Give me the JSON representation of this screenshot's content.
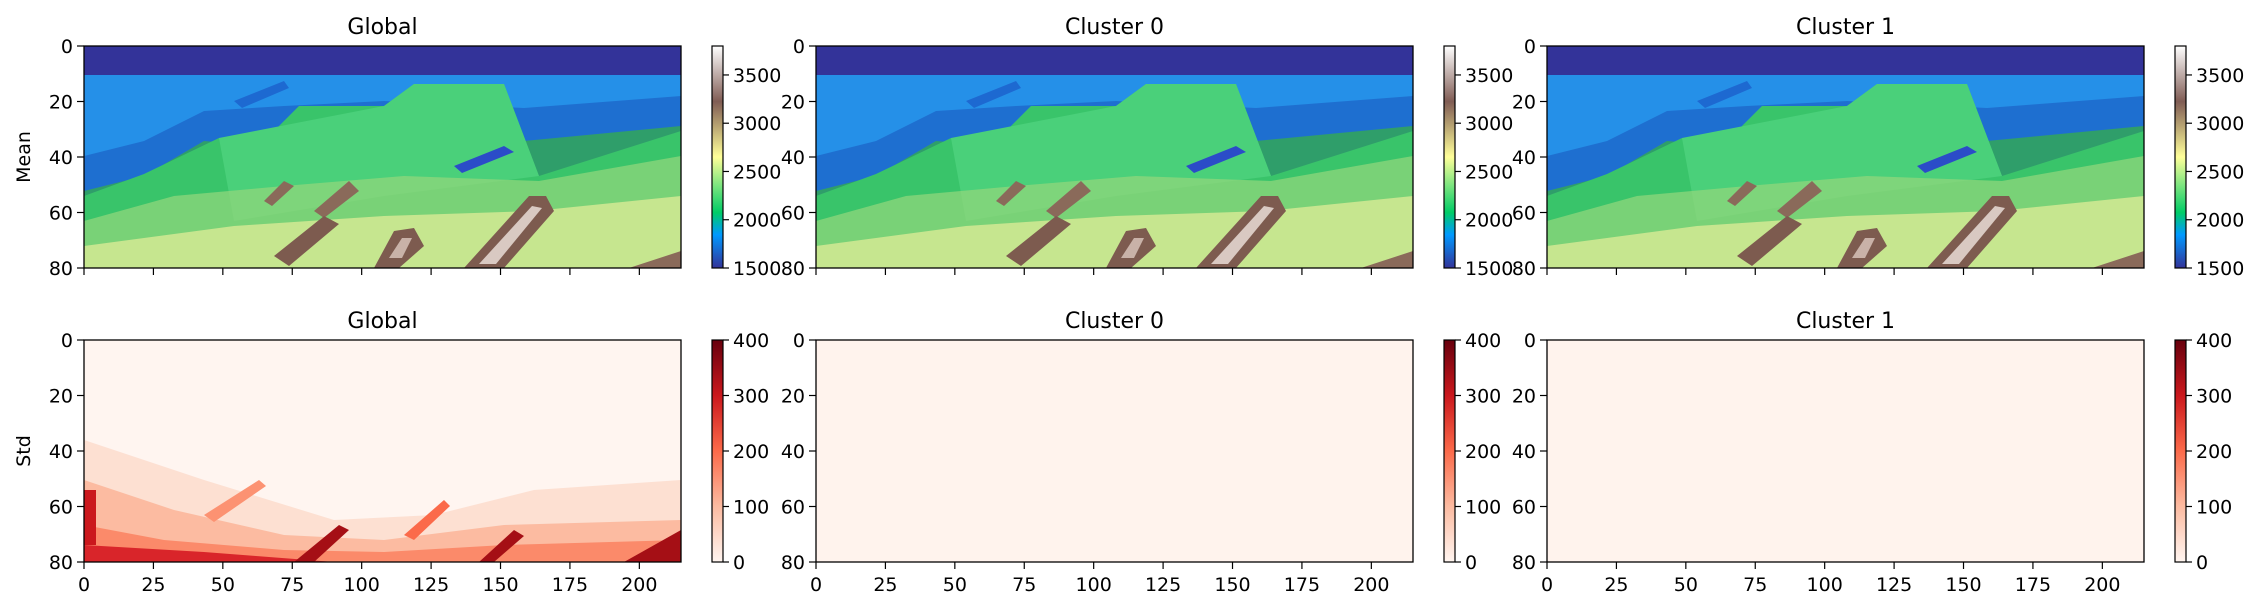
{
  "chart_data": [
    {
      "type": "heatmap",
      "row": "mean",
      "title": "Global",
      "ylabel": "Mean",
      "xlim": [
        0,
        215
      ],
      "ylim": [
        80,
        0
      ],
      "xticks": [
        0,
        25,
        50,
        75,
        100,
        125,
        150,
        175,
        200
      ],
      "yticks": [
        0,
        20,
        40,
        60,
        80
      ],
      "colormap": "terrain",
      "colorbar": {
        "min": 1500,
        "max": 3800,
        "ticks": [
          1500,
          2000,
          2500,
          3000,
          3500
        ]
      },
      "show_xtick_labels": false
    },
    {
      "type": "heatmap",
      "row": "mean",
      "title": "Cluster 0",
      "ylabel": "",
      "xlim": [
        0,
        215
      ],
      "ylim": [
        80,
        0
      ],
      "xticks": [
        0,
        25,
        50,
        75,
        100,
        125,
        150,
        175,
        200
      ],
      "yticks": [
        0,
        20,
        40,
        60,
        80
      ],
      "colormap": "terrain",
      "colorbar": {
        "min": 1500,
        "max": 3800,
        "ticks": [
          1500,
          2000,
          2500,
          3000,
          3500
        ]
      },
      "show_xtick_labels": false
    },
    {
      "type": "heatmap",
      "row": "mean",
      "title": "Cluster 1",
      "ylabel": "",
      "xlim": [
        0,
        215
      ],
      "ylim": [
        80,
        0
      ],
      "xticks": [
        0,
        25,
        50,
        75,
        100,
        125,
        150,
        175,
        200
      ],
      "yticks": [
        0,
        20,
        40,
        60,
        80
      ],
      "colormap": "terrain",
      "colorbar": {
        "min": 1500,
        "max": 3800,
        "ticks": [
          1500,
          2000,
          2500,
          3000,
          3500
        ]
      },
      "show_xtick_labels": false
    },
    {
      "type": "heatmap",
      "row": "std",
      "title": "Global",
      "ylabel": "Std",
      "xlim": [
        0,
        215
      ],
      "ylim": [
        80,
        0
      ],
      "xticks": [
        0,
        25,
        50,
        75,
        100,
        125,
        150,
        175,
        200
      ],
      "yticks": [
        0,
        20,
        40,
        60,
        80
      ],
      "colormap": "Reds",
      "colorbar": {
        "min": 0,
        "max": 400,
        "ticks": [
          0,
          100,
          200,
          300,
          400
        ]
      },
      "show_xtick_labels": true
    },
    {
      "type": "heatmap",
      "row": "std",
      "title": "Cluster 0",
      "ylabel": "",
      "xlim": [
        0,
        215
      ],
      "ylim": [
        80,
        0
      ],
      "xticks": [
        0,
        25,
        50,
        75,
        100,
        125,
        150,
        175,
        200
      ],
      "yticks": [
        0,
        20,
        40,
        60,
        80
      ],
      "colormap": "Reds",
      "colorbar": {
        "min": 0,
        "max": 400,
        "ticks": [
          0,
          100,
          200,
          300,
          400
        ]
      },
      "show_xtick_labels": true
    },
    {
      "type": "heatmap",
      "row": "std",
      "title": "Cluster 1",
      "ylabel": "",
      "xlim": [
        0,
        215
      ],
      "ylim": [
        80,
        0
      ],
      "xticks": [
        0,
        25,
        50,
        75,
        100,
        125,
        150,
        175,
        200
      ],
      "yticks": [
        0,
        20,
        40,
        60,
        80
      ],
      "colormap": "Reds",
      "colorbar": {
        "min": 0,
        "max": 400,
        "ticks": [
          0,
          100,
          200,
          300,
          400
        ]
      },
      "show_xtick_labels": true
    }
  ]
}
